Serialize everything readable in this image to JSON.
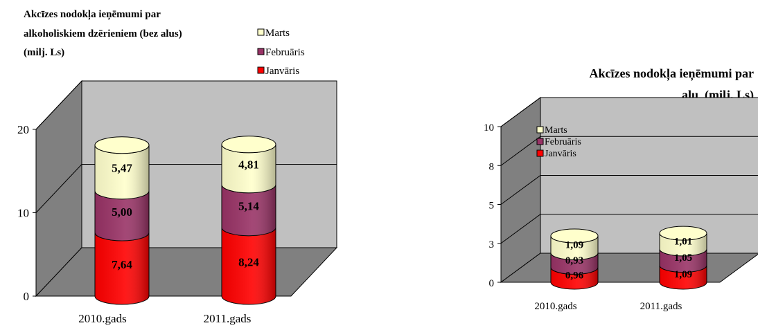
{
  "chart_data": [
    {
      "type": "bar",
      "title_lines": [
        "Akcīzes nodokļa ieņēmumi par",
        "alkoholiskiem dzērieniem (bez alus)",
        "(milj. Ls)"
      ],
      "categories": [
        "2010.gads",
        "2011.gads"
      ],
      "series": [
        {
          "name": "Janvāris",
          "values": [
            7.64,
            8.24
          ],
          "labels": [
            "7,64",
            "8,24"
          ],
          "color": "#ff0000"
        },
        {
          "name": "Februāris",
          "values": [
            5.0,
            5.14
          ],
          "labels": [
            "5,00",
            "5,14"
          ],
          "color": "#993366"
        },
        {
          "name": "Marts",
          "values": [
            5.47,
            4.81
          ],
          "labels": [
            "5,47",
            "4,81"
          ],
          "color": "#ffffcc"
        }
      ],
      "legend_order": [
        "Marts",
        "Februāris",
        "Janvāris"
      ],
      "legend_position": "top-right",
      "yticks": [
        "0",
        "10",
        "20"
      ],
      "ylim": [
        0,
        20
      ],
      "stacked": true,
      "grid": true
    },
    {
      "type": "bar",
      "title_lines": [
        "Akcīzes nodokļa ieņēmumi par",
        "alu  (milj. Ls)"
      ],
      "categories": [
        "2010.gads",
        "2011.gads"
      ],
      "series": [
        {
          "name": "Janvāris",
          "values": [
            0.96,
            1.09
          ],
          "labels": [
            "0,96",
            "1,09"
          ],
          "color": "#ff0000"
        },
        {
          "name": "Februāris",
          "values": [
            0.93,
            1.05
          ],
          "labels": [
            "0,93",
            "1,05"
          ],
          "color": "#993366"
        },
        {
          "name": "Marts",
          "values": [
            1.09,
            1.01
          ],
          "labels": [
            "1,09",
            "1,01"
          ],
          "color": "#ffffcc"
        }
      ],
      "legend_order": [
        "Marts",
        "Februāris",
        "Janvāris"
      ],
      "legend_position": "top-left",
      "yticks": [
        "0",
        "3",
        "5",
        "8",
        "10"
      ],
      "ylim": [
        0,
        10
      ],
      "stacked": true,
      "grid": true
    }
  ]
}
